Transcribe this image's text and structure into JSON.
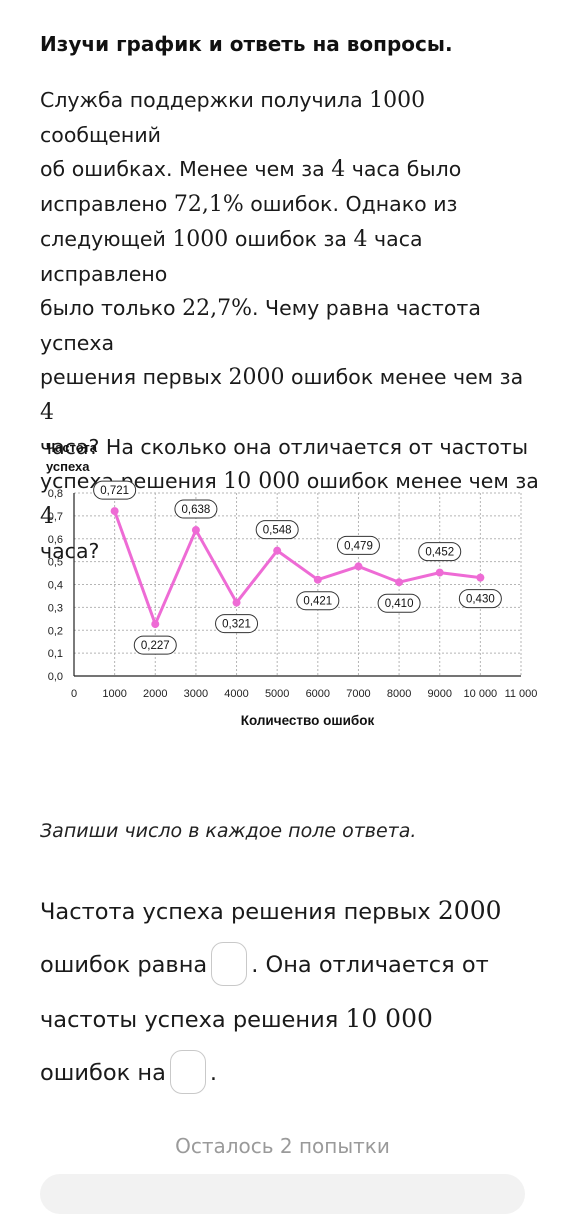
{
  "heading": "Изучи график и ответь на вопросы.",
  "problem": {
    "line1_a": "Служба поддержки получила ",
    "line1_m": "1000",
    "line1_b": " сообщений",
    "line2_a": "об ошибках. Менее чем за ",
    "line2_m": "4",
    "line2_b": " часа было",
    "line3_a": "исправлено ",
    "line3_m": "72,1%",
    "line3_b": " ошибок. Однако из",
    "line4_a": "следующей ",
    "line4_m1": "1000",
    "line4_b": " ошибок за ",
    "line4_m2": "4",
    "line4_c": " часа исправлено",
    "line5_a": "было только ",
    "line5_m": "22,7%",
    "line5_b": ". Чему равна частота успеха",
    "line6_a": "решения первых ",
    "line6_m1": "2000",
    "line6_b": " ошибок менее чем за ",
    "line6_m2": "4",
    "line7": "часа?  На сколько она отличается от частоты",
    "line8_a": "успеха решения ",
    "line8_m1": "10 000",
    "line8_b": " ошибок менее чем за ",
    "line8_m2": "4",
    "line9": "часа?"
  },
  "chart_data": {
    "type": "line",
    "ylabel": "Частота успеха",
    "xlabel": "Количество ошибок",
    "x": [
      1000,
      2000,
      3000,
      4000,
      5000,
      6000,
      7000,
      8000,
      9000,
      10000
    ],
    "y": [
      0.721,
      0.227,
      0.638,
      0.321,
      0.548,
      0.421,
      0.479,
      0.41,
      0.452,
      0.43
    ],
    "point_labels": [
      "0,721",
      "0,227",
      "0,638",
      "0,321",
      "0,548",
      "0,421",
      "0,479",
      "0,410",
      "0,452",
      "0,430"
    ],
    "xlim": [
      0,
      11000
    ],
    "ylim": [
      0,
      0.8
    ],
    "x_ticks": [
      0,
      1000,
      2000,
      3000,
      4000,
      5000,
      6000,
      7000,
      8000,
      9000,
      10000,
      11000
    ],
    "x_tick_labels": [
      "0",
      "1000",
      "2000",
      "3000",
      "4000",
      "5000",
      "6000",
      "7000",
      "8000",
      "9000",
      "10 000",
      "11 000"
    ],
    "y_ticks": [
      0,
      0.1,
      0.2,
      0.3,
      0.4,
      0.5,
      0.6,
      0.7,
      0.8
    ],
    "y_tick_labels": [
      "0,0",
      "0,1",
      "0,2",
      "0,3",
      "0,4",
      "0,5",
      "0,6",
      "0,7",
      "0,8"
    ],
    "grid": true,
    "colors": {
      "line": "#ee6bd5",
      "grid": "#b5b5b5",
      "axis": "#222222"
    }
  },
  "instruction": "Запиши число в каждое поле ответа.",
  "answer": {
    "part1": "Частота успеха решения первых ",
    "part1_m": "2000",
    "part2": "ошибок равна",
    "part3": ". Она отличается от",
    "part4": "частоты успеха решения ",
    "part4_m": "10 000",
    "part5": "ошибок на",
    "part6": "."
  },
  "attempts": "Осталось 2 попытки"
}
